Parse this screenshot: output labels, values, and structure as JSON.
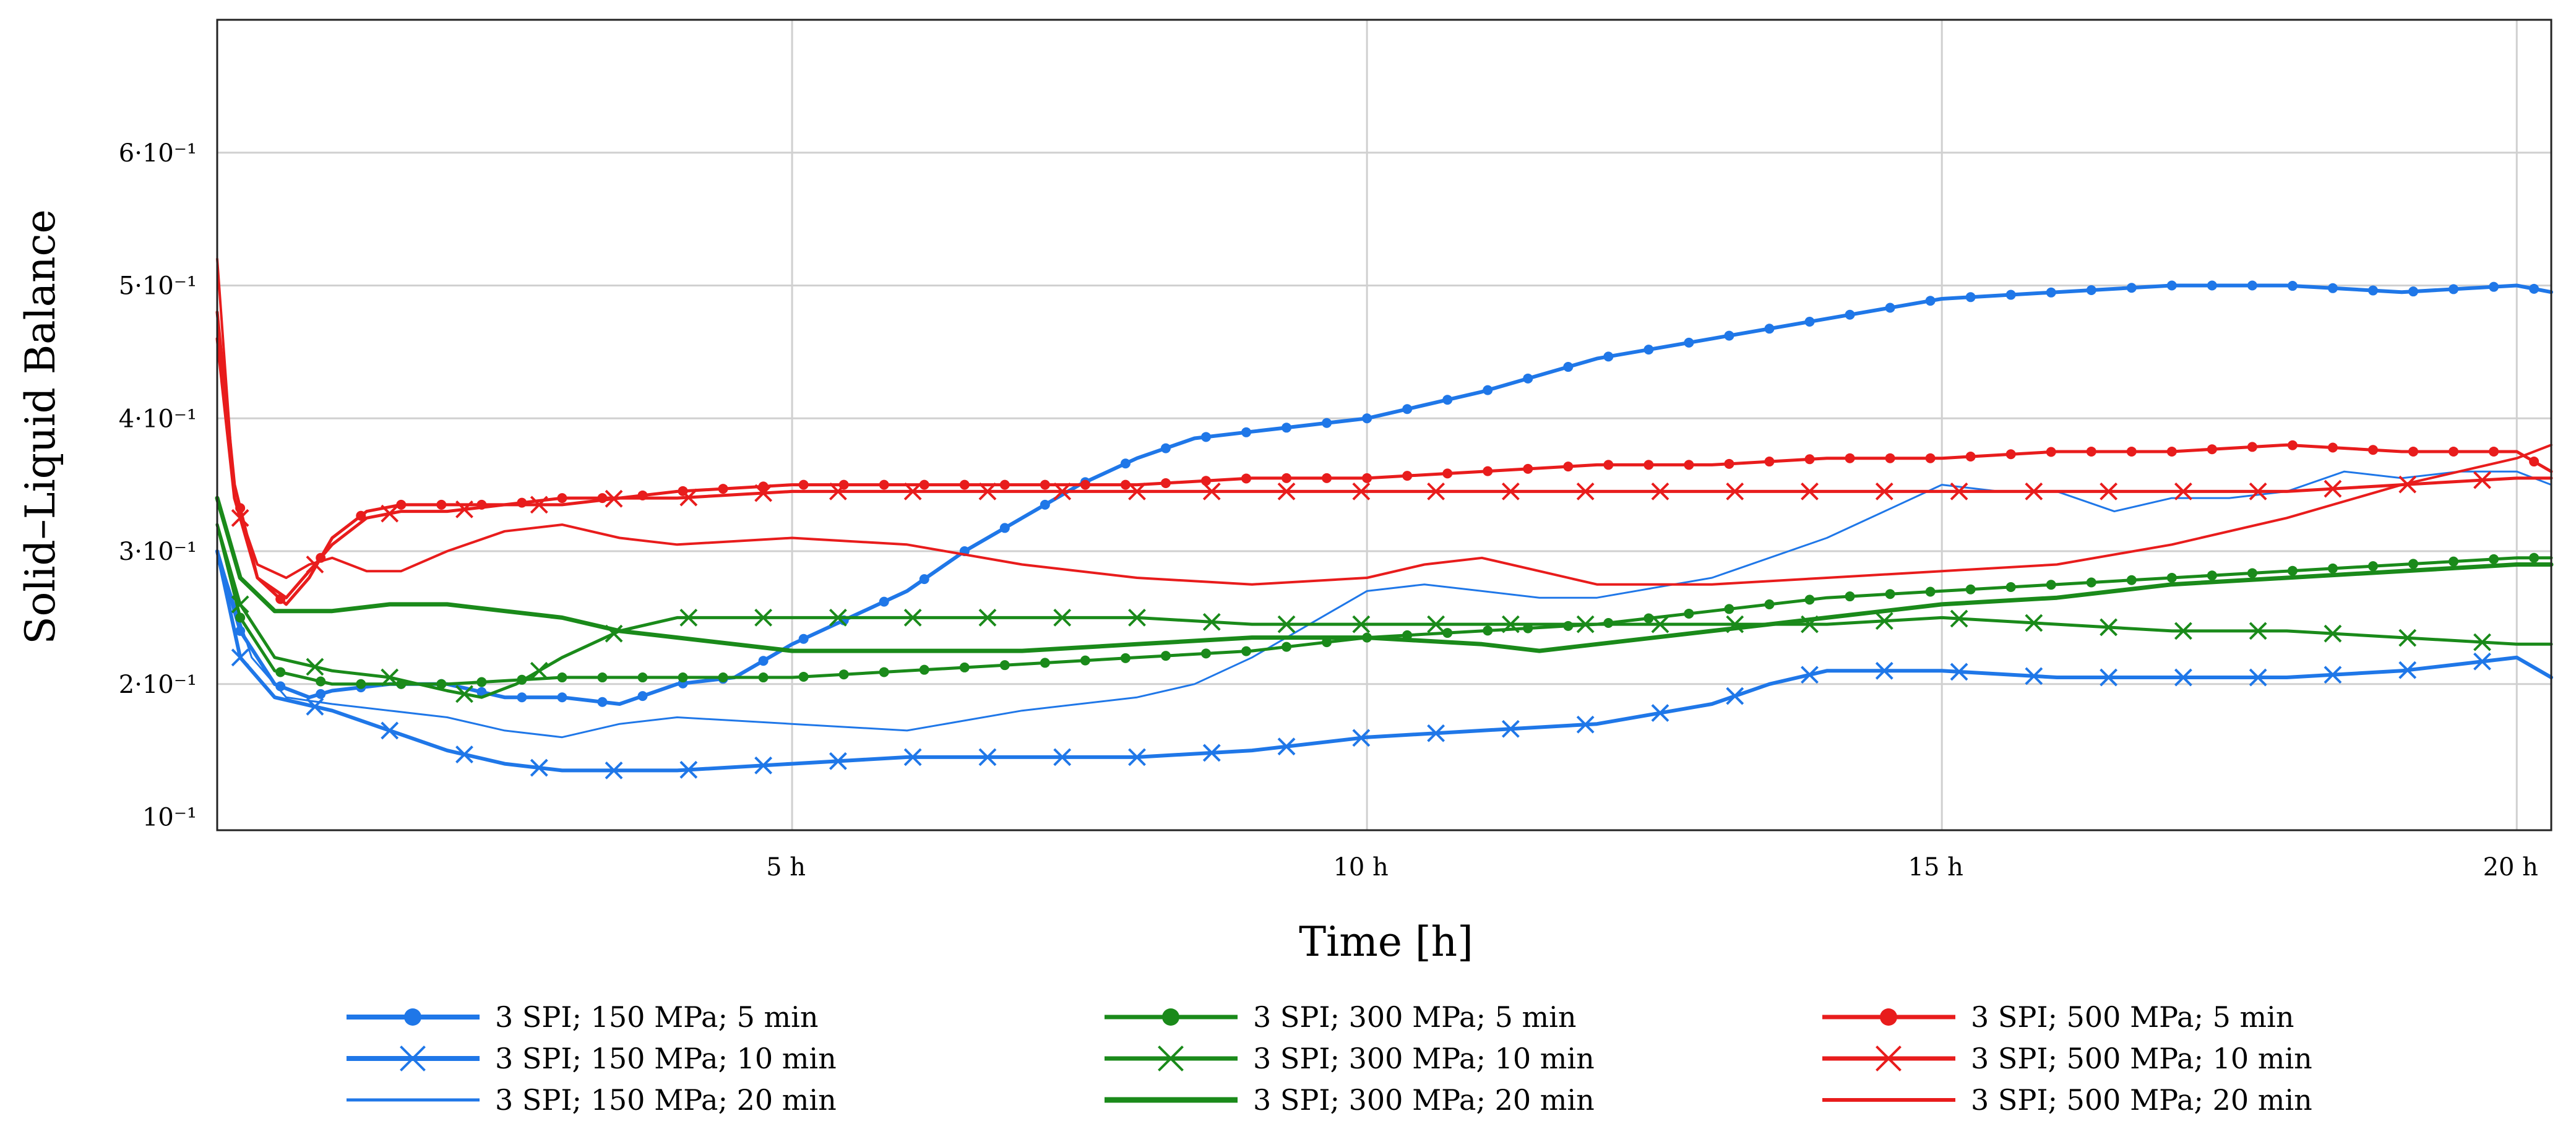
{
  "chart_data": {
    "type": "line",
    "title": "",
    "xlabel": "Time [h]",
    "ylabel": "Solid–Liquid Balance",
    "xlim": [
      0,
      20.3
    ],
    "ylim": [
      0.09,
      0.7
    ],
    "grid": true,
    "legend_position": "bottom",
    "x_ticks": [
      {
        "value": 5,
        "label": "5 h"
      },
      {
        "value": 10,
        "label": "10 h"
      },
      {
        "value": 15,
        "label": "15 h"
      },
      {
        "value": 20,
        "label": "20 h"
      }
    ],
    "y_ticks": [
      {
        "value": 0.1,
        "label": "10⁻¹"
      },
      {
        "value": 0.2,
        "label": "2·10⁻¹"
      },
      {
        "value": 0.3,
        "label": "3·10⁻¹"
      },
      {
        "value": 0.4,
        "label": "4·10⁻¹"
      },
      {
        "value": 0.5,
        "label": "5·10⁻¹"
      },
      {
        "value": 0.6,
        "label": "6·10⁻¹"
      }
    ],
    "series": [
      {
        "name": "3 SPI; 150 MPa; 5 min",
        "color": "#1f77e8",
        "marker": "dot",
        "width": 6,
        "x": [
          0,
          0.2,
          0.5,
          0.8,
          1.0,
          1.5,
          2.0,
          2.5,
          3.0,
          3.5,
          4.0,
          4.5,
          5.0,
          5.5,
          6.0,
          6.5,
          7.0,
          7.5,
          8.0,
          8.5,
          9.0,
          9.5,
          10.0,
          11.0,
          12.0,
          13.0,
          14.0,
          15.0,
          16.0,
          17.0,
          18.0,
          19.0,
          20.0,
          20.3
        ],
        "y": [
          0.3,
          0.24,
          0.2,
          0.19,
          0.195,
          0.2,
          0.2,
          0.19,
          0.19,
          0.185,
          0.2,
          0.205,
          0.23,
          0.25,
          0.27,
          0.3,
          0.325,
          0.35,
          0.37,
          0.385,
          0.39,
          0.395,
          0.4,
          0.42,
          0.445,
          0.46,
          0.475,
          0.49,
          0.495,
          0.5,
          0.5,
          0.495,
          0.5,
          0.495
        ]
      },
      {
        "name": "3 SPI; 150 MPa; 10 min",
        "color": "#1f77e8",
        "marker": "x",
        "width": 6,
        "x": [
          0,
          0.2,
          0.5,
          1.0,
          1.5,
          2.0,
          2.5,
          3.0,
          4.0,
          5.0,
          6.0,
          7.0,
          8.0,
          9.0,
          10.0,
          11.0,
          12.0,
          13.0,
          13.5,
          14.0,
          14.5,
          15.0,
          16.0,
          17.0,
          18.0,
          19.0,
          19.5,
          20.0,
          20.3
        ],
        "y": [
          0.3,
          0.22,
          0.19,
          0.18,
          0.165,
          0.15,
          0.14,
          0.135,
          0.135,
          0.14,
          0.145,
          0.145,
          0.145,
          0.15,
          0.16,
          0.165,
          0.17,
          0.185,
          0.2,
          0.21,
          0.21,
          0.21,
          0.205,
          0.205,
          0.205,
          0.21,
          0.215,
          0.22,
          0.205
        ]
      },
      {
        "name": "3 SPI; 150 MPa; 20 min",
        "color": "#1f77e8",
        "marker": "none",
        "width": 3,
        "x": [
          0,
          0.3,
          0.6,
          1.0,
          1.5,
          2.0,
          2.5,
          3.0,
          3.5,
          4.0,
          5.0,
          6.0,
          7.0,
          8.0,
          8.5,
          9.0,
          9.5,
          10.0,
          10.5,
          11.0,
          11.5,
          12.0,
          13.0,
          14.0,
          14.5,
          15.0,
          15.5,
          16.0,
          16.5,
          17.0,
          17.5,
          18.0,
          18.5,
          19.0,
          19.5,
          20.0,
          20.3
        ],
        "y": [
          0.3,
          0.22,
          0.19,
          0.185,
          0.18,
          0.175,
          0.165,
          0.16,
          0.17,
          0.175,
          0.17,
          0.165,
          0.18,
          0.19,
          0.2,
          0.22,
          0.245,
          0.27,
          0.275,
          0.27,
          0.265,
          0.265,
          0.28,
          0.31,
          0.33,
          0.35,
          0.345,
          0.345,
          0.33,
          0.34,
          0.34,
          0.345,
          0.36,
          0.355,
          0.36,
          0.36,
          0.35
        ]
      },
      {
        "name": "3 SPI; 300 MPa; 5 min",
        "color": "#1a8a1a",
        "marker": "dot",
        "width": 5,
        "x": [
          0,
          0.2,
          0.5,
          1.0,
          1.5,
          2.0,
          3.0,
          4.0,
          5.0,
          6.0,
          7.0,
          8.0,
          9.0,
          10.0,
          11.0,
          12.0,
          13.0,
          14.0,
          15.0,
          16.0,
          17.0,
          18.0,
          19.0,
          20.0,
          20.3
        ],
        "y": [
          0.32,
          0.25,
          0.21,
          0.2,
          0.2,
          0.2,
          0.205,
          0.205,
          0.205,
          0.21,
          0.215,
          0.22,
          0.225,
          0.235,
          0.24,
          0.245,
          0.255,
          0.265,
          0.27,
          0.275,
          0.28,
          0.285,
          0.29,
          0.295,
          0.295
        ]
      },
      {
        "name": "3 SPI; 300 MPa; 10 min",
        "color": "#1a8a1a",
        "marker": "x",
        "width": 5,
        "x": [
          0,
          0.2,
          0.5,
          1.0,
          1.5,
          2.0,
          2.3,
          2.6,
          3.0,
          3.5,
          4.0,
          5.0,
          6.0,
          7.0,
          8.0,
          9.0,
          10.0,
          11.0,
          12.0,
          13.0,
          14.0,
          15.0,
          16.0,
          17.0,
          18.0,
          19.0,
          20.0,
          20.3
        ],
        "y": [
          0.32,
          0.26,
          0.22,
          0.21,
          0.205,
          0.195,
          0.19,
          0.2,
          0.22,
          0.24,
          0.25,
          0.25,
          0.25,
          0.25,
          0.25,
          0.245,
          0.245,
          0.245,
          0.245,
          0.245,
          0.245,
          0.25,
          0.245,
          0.24,
          0.24,
          0.235,
          0.23,
          0.23
        ]
      },
      {
        "name": "3 SPI; 300 MPa; 20 min",
        "color": "#1a8a1a",
        "marker": "none",
        "width": 7,
        "x": [
          0,
          0.2,
          0.5,
          1.0,
          1.5,
          2.0,
          2.5,
          3.0,
          3.5,
          4.0,
          5.0,
          6.0,
          7.0,
          8.0,
          9.0,
          10.0,
          11.0,
          11.5,
          12.0,
          13.0,
          14.0,
          15.0,
          16.0,
          17.0,
          18.0,
          19.0,
          20.0,
          20.3
        ],
        "y": [
          0.34,
          0.28,
          0.255,
          0.255,
          0.26,
          0.26,
          0.255,
          0.25,
          0.24,
          0.235,
          0.225,
          0.225,
          0.225,
          0.23,
          0.235,
          0.235,
          0.23,
          0.225,
          0.23,
          0.24,
          0.25,
          0.26,
          0.265,
          0.275,
          0.28,
          0.285,
          0.29,
          0.29
        ]
      },
      {
        "name": "3 SPI; 500 MPa; 5 min",
        "color": "#e81c1c",
        "marker": "dot",
        "width": 5,
        "x": [
          0,
          0.15,
          0.35,
          0.6,
          0.8,
          1.0,
          1.3,
          1.6,
          2.0,
          2.5,
          3.0,
          3.5,
          4.0,
          5.0,
          6.0,
          7.0,
          8.0,
          9.0,
          10.0,
          11.0,
          12.0,
          13.0,
          14.0,
          15.0,
          16.0,
          17.0,
          18.0,
          19.0,
          20.0,
          20.3
        ],
        "y": [
          0.48,
          0.35,
          0.28,
          0.26,
          0.28,
          0.31,
          0.33,
          0.335,
          0.335,
          0.335,
          0.34,
          0.34,
          0.345,
          0.35,
          0.35,
          0.35,
          0.35,
          0.355,
          0.355,
          0.36,
          0.365,
          0.365,
          0.37,
          0.37,
          0.375,
          0.375,
          0.38,
          0.375,
          0.375,
          0.36
        ]
      },
      {
        "name": "3 SPI; 500 MPa; 10 min",
        "color": "#e81c1c",
        "marker": "x",
        "width": 5,
        "x": [
          0,
          0.15,
          0.35,
          0.6,
          0.8,
          1.0,
          1.3,
          1.6,
          2.0,
          2.5,
          3.0,
          3.5,
          4.0,
          5.0,
          6.0,
          7.0,
          8.0,
          9.0,
          10.0,
          11.0,
          12.0,
          13.0,
          14.0,
          15.0,
          16.0,
          17.0,
          18.0,
          19.0,
          20.0,
          20.3
        ],
        "y": [
          0.46,
          0.34,
          0.28,
          0.265,
          0.285,
          0.305,
          0.325,
          0.33,
          0.33,
          0.335,
          0.335,
          0.34,
          0.34,
          0.345,
          0.345,
          0.345,
          0.345,
          0.345,
          0.345,
          0.345,
          0.345,
          0.345,
          0.345,
          0.345,
          0.345,
          0.345,
          0.345,
          0.35,
          0.355,
          0.355
        ]
      },
      {
        "name": "3 SPI; 500 MPa; 20 min",
        "color": "#e81c1c",
        "marker": "none",
        "width": 4,
        "x": [
          0,
          0.15,
          0.35,
          0.6,
          0.8,
          1.0,
          1.3,
          1.6,
          2.0,
          2.5,
          3.0,
          3.5,
          4.0,
          5.0,
          6.0,
          7.0,
          8.0,
          9.0,
          10.0,
          10.5,
          11.0,
          11.5,
          12.0,
          13.0,
          14.0,
          15.0,
          16.0,
          17.0,
          18.0,
          19.0,
          20.0,
          20.3
        ],
        "y": [
          0.52,
          0.34,
          0.29,
          0.28,
          0.29,
          0.295,
          0.285,
          0.285,
          0.3,
          0.315,
          0.32,
          0.31,
          0.305,
          0.31,
          0.305,
          0.29,
          0.28,
          0.275,
          0.28,
          0.29,
          0.295,
          0.285,
          0.275,
          0.275,
          0.28,
          0.285,
          0.29,
          0.305,
          0.325,
          0.35,
          0.37,
          0.38
        ]
      }
    ]
  }
}
